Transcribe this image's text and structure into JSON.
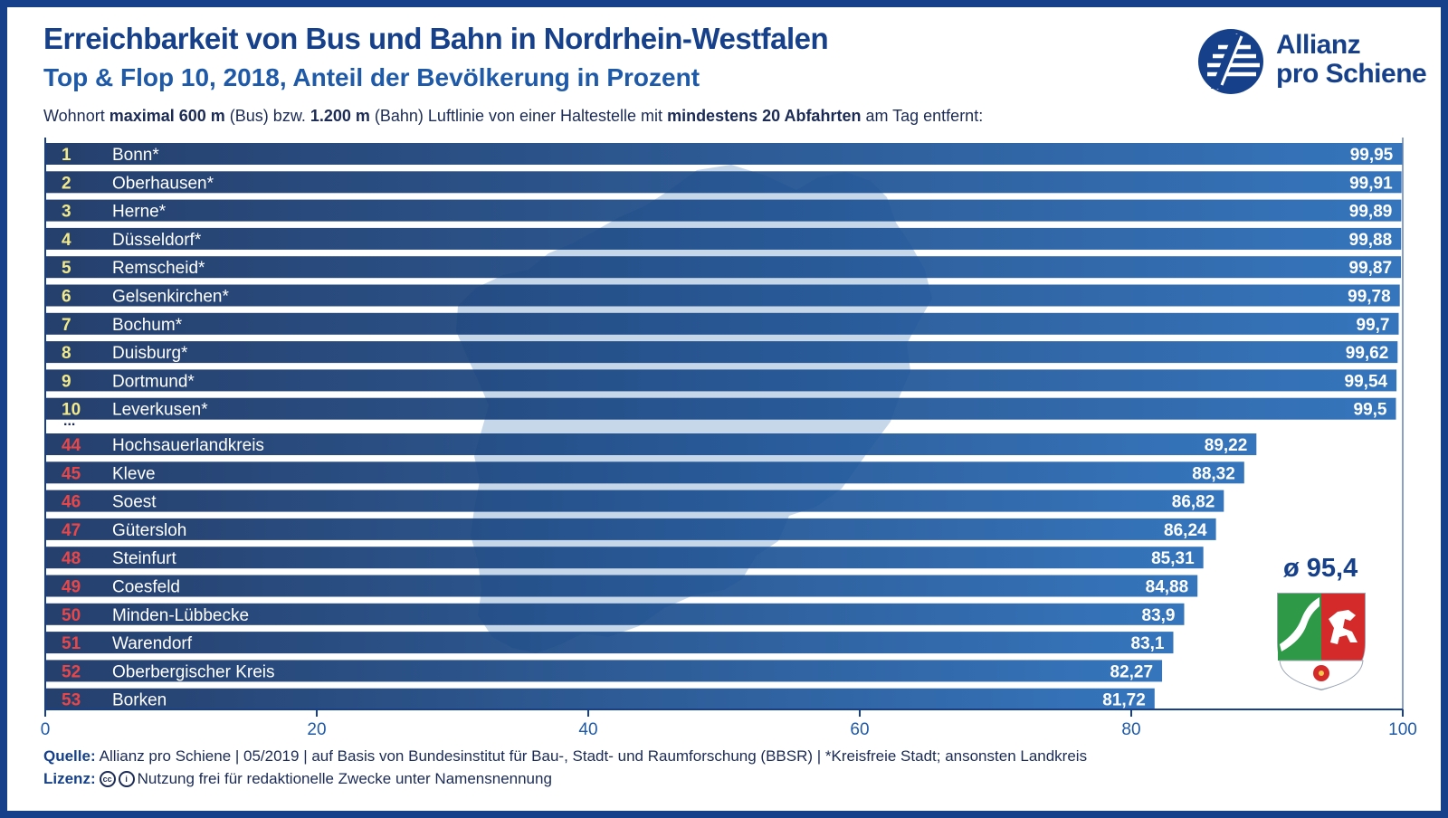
{
  "title": "Erreichbarkeit von Bus und Bahn in Nordrhein-Westfalen",
  "subtitle": "Top & Flop 10, 2018, Anteil der Bevölkerung in Prozent",
  "note": {
    "t1": "Wohnort ",
    "b1": "maximal 600 m",
    "t2": " (Bus) bzw. ",
    "b2": "1.200 m",
    "t3": " (Bahn) Luftlinie von einer Haltestelle mit ",
    "b3": "mindestens 20 Abfahrten",
    "t4": " am Tag entfernt:"
  },
  "logo": {
    "name": "Allianz\npro Schiene"
  },
  "average": {
    "label": "ø 95,4",
    "value": 95.4
  },
  "footer": {
    "source_label": "Quelle:",
    "source_text": "Allianz pro Schiene | 05/2019 | auf Basis von Bundesinstitut für Bau-, Stadt- und Raumforschung (BBSR) | *Kreisfreie Stadt; ansonsten Landkreis",
    "license_label": "Lizenz:",
    "license_text": "Nutzung frei für redaktionelle Zwecke unter Namensnennung",
    "icons": [
      "cc-icon",
      "by-icon"
    ]
  },
  "colors": {
    "brand": "#16418a",
    "bar_dark": "#0d2a5c",
    "bar_light": "#1f66b5",
    "top_rank": "#f2e98a",
    "flop_rank": "#e8474a",
    "map": "#c7d7ea"
  },
  "chart_data": {
    "type": "bar",
    "orientation": "horizontal",
    "xlim": [
      0,
      100
    ],
    "x_ticks": [
      "0",
      "20",
      "40",
      "60",
      "80",
      "100"
    ],
    "gap_marker": "...",
    "top": [
      {
        "rank": "1",
        "name": "Bonn*",
        "value": 99.95,
        "label": "99,95"
      },
      {
        "rank": "2",
        "name": "Oberhausen*",
        "value": 99.91,
        "label": "99,91"
      },
      {
        "rank": "3",
        "name": "Herne*",
        "value": 99.89,
        "label": "99,89"
      },
      {
        "rank": "4",
        "name": "Düsseldorf*",
        "value": 99.88,
        "label": "99,88"
      },
      {
        "rank": "5",
        "name": "Remscheid*",
        "value": 99.87,
        "label": "99,87"
      },
      {
        "rank": "6",
        "name": "Gelsenkirchen*",
        "value": 99.78,
        "label": "99,78"
      },
      {
        "rank": "7",
        "name": "Bochum*",
        "value": 99.7,
        "label": "99,7"
      },
      {
        "rank": "8",
        "name": "Duisburg*",
        "value": 99.62,
        "label": "99,62"
      },
      {
        "rank": "9",
        "name": "Dortmund*",
        "value": 99.54,
        "label": "99,54"
      },
      {
        "rank": "10",
        "name": "Leverkusen*",
        "value": 99.5,
        "label": "99,5"
      }
    ],
    "flop": [
      {
        "rank": "44",
        "name": "Hochsauerlandkreis",
        "value": 89.22,
        "label": "89,22"
      },
      {
        "rank": "45",
        "name": "Kleve",
        "value": 88.32,
        "label": "88,32"
      },
      {
        "rank": "46",
        "name": "Soest",
        "value": 86.82,
        "label": "86,82"
      },
      {
        "rank": "47",
        "name": "Gütersloh",
        "value": 86.24,
        "label": "86,24"
      },
      {
        "rank": "48",
        "name": "Steinfurt",
        "value": 85.31,
        "label": "85,31"
      },
      {
        "rank": "49",
        "name": "Coesfeld",
        "value": 84.88,
        "label": "84,88"
      },
      {
        "rank": "50",
        "name": "Minden-Lübbecke",
        "value": 83.9,
        "label": "83,9"
      },
      {
        "rank": "51",
        "name": "Warendorf",
        "value": 83.1,
        "label": "83,1"
      },
      {
        "rank": "52",
        "name": "Oberbergischer Kreis",
        "value": 82.27,
        "label": "82,27"
      },
      {
        "rank": "53",
        "name": "Borken",
        "value": 81.72,
        "label": "81,72"
      }
    ]
  }
}
